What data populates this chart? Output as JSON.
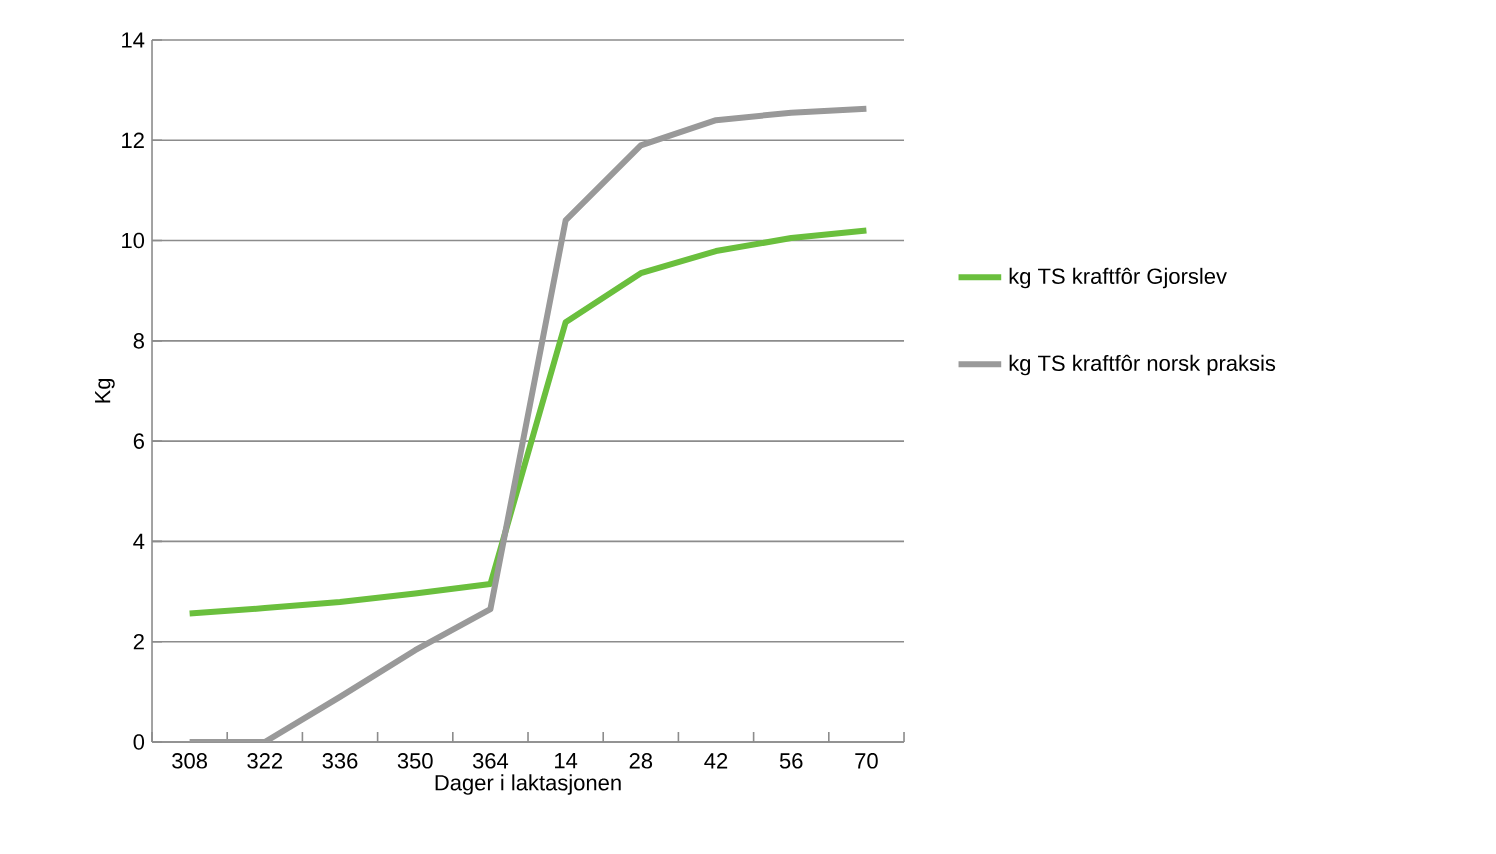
{
  "chart_data": {
    "type": "line",
    "xlabel": "Dager i laktasjonen",
    "ylabel": "Kg",
    "categories": [
      "308",
      "322",
      "336",
      "350",
      "364",
      "14",
      "28",
      "42",
      "56",
      "70"
    ],
    "series": [
      {
        "name": "kg TS kraftfôr Gjorslev",
        "color": "#6abf3d",
        "values": [
          2.56,
          2.67,
          2.79,
          2.96,
          3.15,
          8.37,
          9.35,
          9.79,
          10.05,
          10.2
        ]
      },
      {
        "name": "kg TS kraftfôr norsk praksis",
        "color": "#999999",
        "values": [
          0,
          0,
          0.9,
          1.83,
          2.65,
          10.4,
          11.9,
          12.4,
          12.55,
          12.63
        ]
      }
    ],
    "ylim": [
      0,
      14
    ],
    "yticks": [
      0,
      2,
      4,
      6,
      8,
      10,
      12,
      14
    ],
    "grid": "y",
    "legend": "right",
    "marker": "none",
    "line_style": "solid"
  }
}
